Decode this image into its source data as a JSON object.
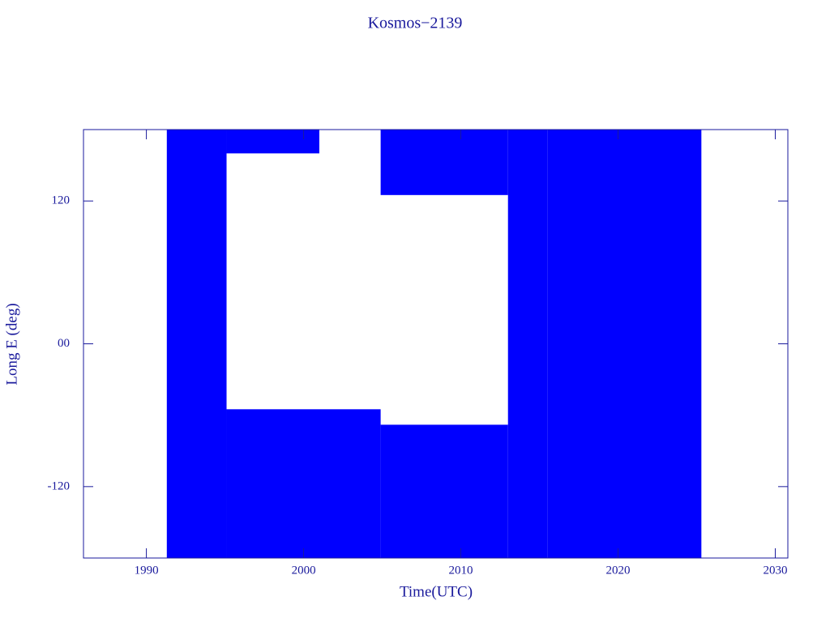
{
  "chart_data": {
    "type": "range",
    "title": "Kosmos−2139",
    "x_label": "Time(UTC)",
    "y_label": "Long E (deg)",
    "color": "#0000ff",
    "axis_color": "#1a1a9c",
    "xlim": [
      1986,
      2030.8
    ],
    "ylim": [
      -180,
      180
    ],
    "xticks": [
      1990,
      2000,
      2010,
      2020,
      2030
    ],
    "yticks": [
      -120,
      {
        "value": 0,
        "label": "00"
      },
      120
    ],
    "x_start": [
      1991.3,
      1995.1,
      1995.1,
      2004.9,
      2004.9,
      2013.0,
      2015.5
    ],
    "x_end": [
      1995.1,
      2004.9,
      2001.0,
      2013.0,
      2013.0,
      2015.5,
      2025.3
    ],
    "y_low": [
      -180,
      -180,
      160,
      125,
      -180,
      -180,
      -180
    ],
    "y_high": [
      180,
      -55,
      180,
      180,
      -68,
      180,
      180
    ]
  }
}
